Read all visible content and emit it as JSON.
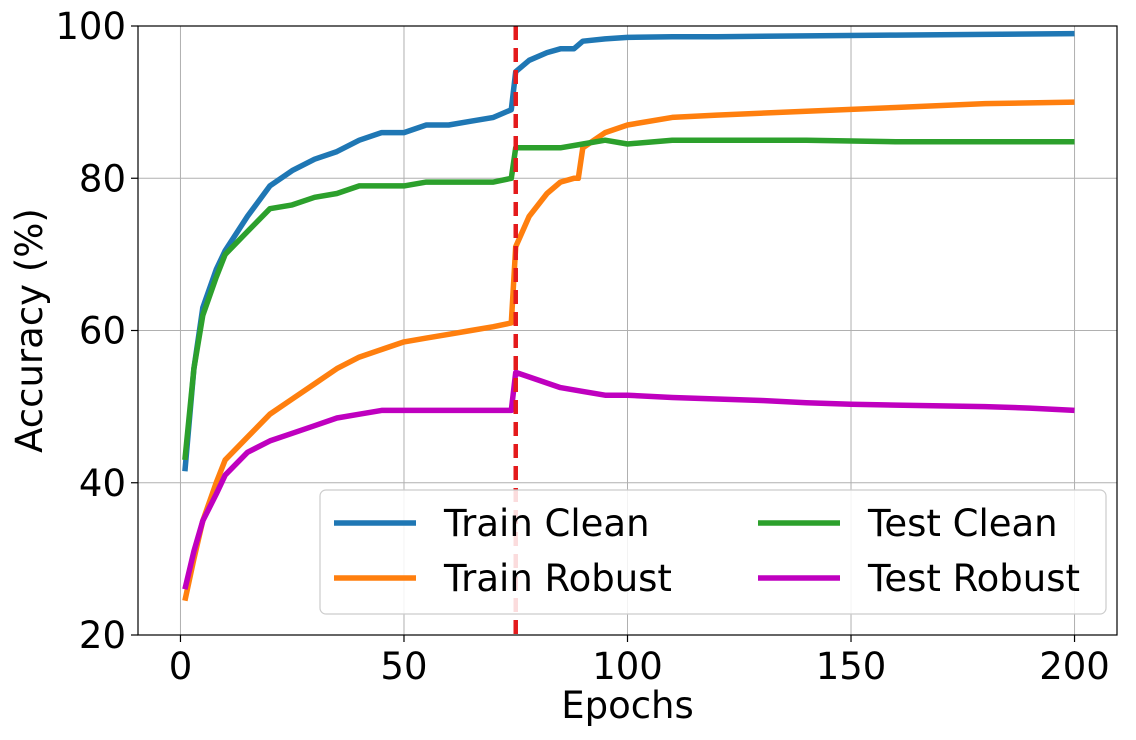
{
  "chart_data": {
    "type": "line",
    "title": "",
    "xlabel": "Epochs",
    "ylabel": "Accuracy (%)",
    "xlim": [
      -9.5,
      209.5
    ],
    "ylim": [
      20,
      100
    ],
    "xticks": [
      0,
      50,
      100,
      150,
      200
    ],
    "yticks": [
      20,
      40,
      60,
      80,
      100
    ],
    "grid": true,
    "legend": {
      "placement": "lower-right",
      "columns": 2
    },
    "vline": {
      "x": 75,
      "color": "#e41a1c",
      "style": "dashed"
    },
    "series": [
      {
        "name": "Train Clean",
        "color": "#1f77b4",
        "x": [
          1,
          3,
          5,
          8,
          10,
          15,
          20,
          25,
          30,
          35,
          40,
          45,
          50,
          55,
          60,
          65,
          70,
          74,
          75,
          78,
          82,
          85,
          88,
          90,
          95,
          100,
          110,
          120,
          140,
          160,
          180,
          200
        ],
        "y": [
          41.5,
          55,
          63,
          68,
          70.5,
          75,
          79,
          81,
          82.5,
          83.5,
          85,
          86,
          86,
          87,
          87,
          87.5,
          88,
          89,
          94,
          95.5,
          96.5,
          97,
          97,
          98,
          98.3,
          98.5,
          98.6,
          98.6,
          98.7,
          98.8,
          98.9,
          99
        ]
      },
      {
        "name": "Train Robust",
        "color": "#ff7f0e",
        "x": [
          1,
          3,
          5,
          8,
          10,
          15,
          20,
          25,
          30,
          35,
          40,
          45,
          50,
          55,
          60,
          65,
          70,
          74,
          75,
          78,
          82,
          85,
          88,
          89,
          90,
          95,
          100,
          110,
          120,
          140,
          160,
          180,
          200
        ],
        "y": [
          24.5,
          30,
          35,
          40,
          43,
          46,
          49,
          51,
          53,
          55,
          56.5,
          57.5,
          58.5,
          59,
          59.5,
          60,
          60.5,
          61,
          71,
          75,
          78,
          79.5,
          80,
          80,
          84,
          86,
          87,
          88,
          88.3,
          88.8,
          89.3,
          89.8,
          90
        ]
      },
      {
        "name": "Test Clean",
        "color": "#2ca02c",
        "x": [
          1,
          3,
          5,
          8,
          10,
          15,
          20,
          25,
          30,
          35,
          40,
          45,
          50,
          55,
          60,
          65,
          70,
          74,
          75,
          80,
          85,
          90,
          95,
          100,
          110,
          120,
          140,
          160,
          180,
          200
        ],
        "y": [
          43,
          55,
          62,
          67,
          70,
          73,
          76,
          76.5,
          77.5,
          78,
          79,
          79,
          79,
          79.5,
          79.5,
          79.5,
          79.5,
          80,
          84,
          84,
          84,
          84.5,
          85,
          84.5,
          85,
          85,
          85,
          84.8,
          84.8,
          84.8
        ]
      },
      {
        "name": "Test Robust",
        "color": "#bf00bf",
        "x": [
          1,
          3,
          5,
          8,
          10,
          15,
          20,
          25,
          30,
          35,
          40,
          45,
          50,
          55,
          60,
          65,
          70,
          74,
          75,
          80,
          85,
          90,
          95,
          100,
          110,
          120,
          130,
          140,
          150,
          160,
          170,
          180,
          190,
          200
        ],
        "y": [
          26,
          31,
          35,
          38.5,
          41,
          44,
          45.5,
          46.5,
          47.5,
          48.5,
          49,
          49.5,
          49.5,
          49.5,
          49.5,
          49.5,
          49.5,
          49.5,
          54.5,
          53.5,
          52.5,
          52,
          51.5,
          51.5,
          51.2,
          51,
          50.8,
          50.5,
          50.3,
          50.2,
          50.1,
          50,
          49.8,
          49.5
        ]
      }
    ]
  }
}
